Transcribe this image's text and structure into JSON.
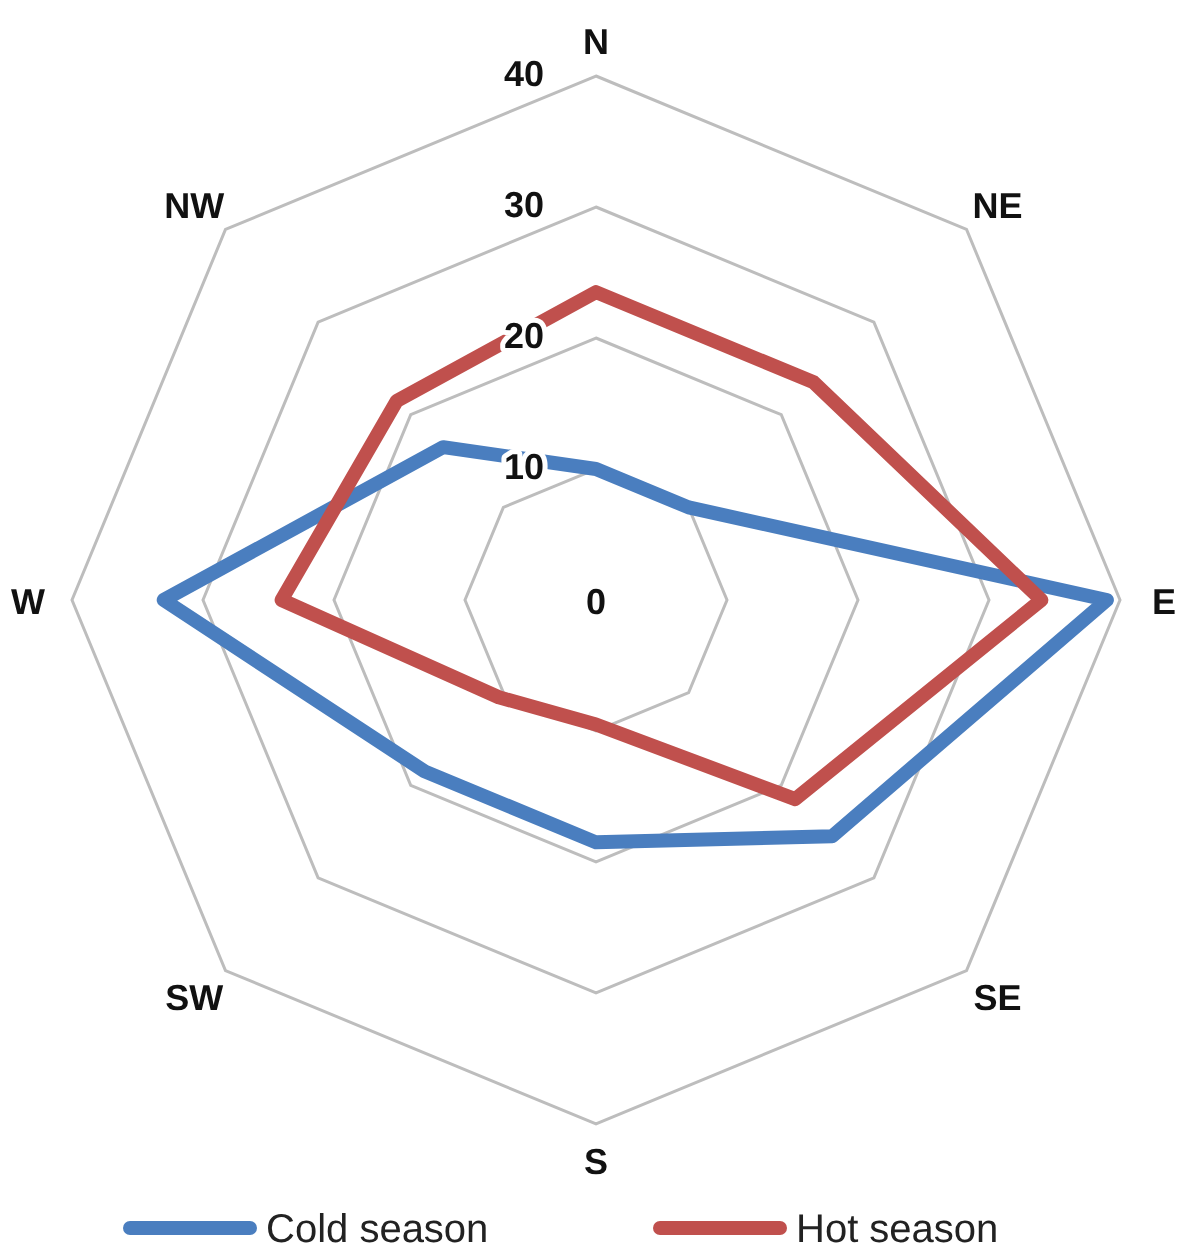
{
  "chart_data": {
    "type": "radar",
    "categories": [
      "N",
      "NE",
      "E",
      "SE",
      "S",
      "SW",
      "W",
      "NW"
    ],
    "ylim": [
      0,
      40
    ],
    "yticks": [
      0,
      10,
      20,
      30,
      40
    ],
    "grid": true,
    "legend": "bottom",
    "series": [
      {
        "name": "Cold season",
        "color": "#4a7ebf",
        "values": [
          10,
          10,
          39,
          25.5,
          18.5,
          18.5,
          33,
          16.5
        ]
      },
      {
        "name": "Hot season",
        "color": "#c0504d",
        "values": [
          23.5,
          23.5,
          34,
          21.5,
          9.5,
          10.5,
          24,
          21.5
        ]
      }
    ]
  }
}
